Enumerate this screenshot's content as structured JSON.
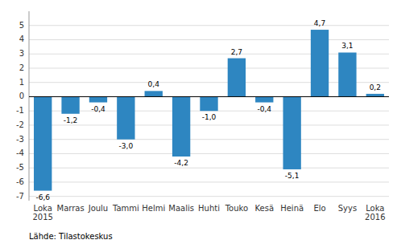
{
  "chart_data": {
    "type": "bar",
    "categories": [
      "Loka\n2015",
      "Marras",
      "Joulu",
      "Tammi",
      "Helmi",
      "Maalis",
      "Huhti",
      "Touko",
      "Kesä",
      "Heinä",
      "Elo",
      "Syys",
      "Loka\n2016"
    ],
    "values": [
      -6.6,
      -1.2,
      -0.4,
      -3.0,
      0.4,
      -4.2,
      -1.0,
      2.7,
      -0.4,
      -5.1,
      4.7,
      3.1,
      0.2
    ],
    "value_labels": [
      "-6,6",
      "-1,2",
      "-0,4",
      "-3,0",
      "0,4",
      "-4,2",
      "-1,0",
      "2,7",
      "-0,4",
      "-5,1",
      "4,7",
      "3,1",
      "0,2"
    ],
    "data_labels": true,
    "color": "#2E86C1",
    "ylim": [
      -7.3,
      6.0
    ],
    "yticks": [
      -7,
      -6,
      -5,
      -4,
      -3,
      -2,
      -1,
      0,
      1,
      2,
      3,
      4,
      5
    ],
    "grid": true,
    "annotations": [
      "Lähde: Tilastokeskus"
    ]
  }
}
